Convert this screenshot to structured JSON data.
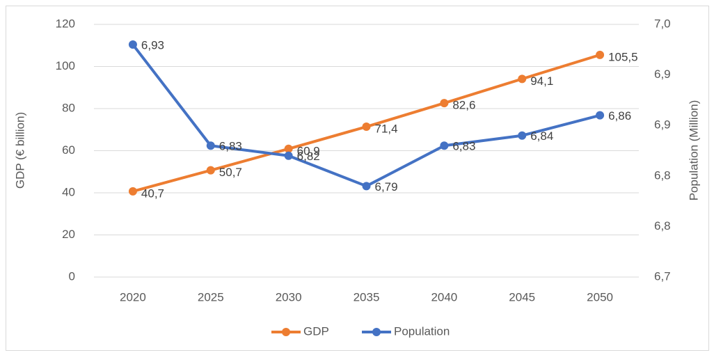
{
  "chart_data": {
    "type": "line",
    "categories": [
      "2020",
      "2025",
      "2030",
      "2035",
      "2040",
      "2045",
      "2050"
    ],
    "y_label": "GDP (€ billion)",
    "y2_label": "Population (Million)",
    "series": [
      {
        "name": "GDP",
        "color": "#ed7d31",
        "values": [
          40.7,
          50.7,
          60.9,
          71.4,
          82.6,
          94.1,
          105.5
        ],
        "value_labels": [
          "40,7",
          "50,7",
          "60,9",
          "71,4",
          "82,6",
          "94,1",
          "105,5"
        ]
      },
      {
        "name": "Population",
        "color": "#4472c4",
        "axis": "y2",
        "values": [
          6.93,
          6.83,
          6.82,
          6.79,
          6.83,
          6.84,
          6.86
        ],
        "value_labels": [
          "6,93",
          "6,83",
          "6,82",
          "6,79",
          "6,83",
          "6,84",
          "6,86"
        ]
      }
    ],
    "ylim": [
      0,
      120
    ],
    "yticks": [
      0,
      20,
      40,
      60,
      80,
      100,
      120
    ],
    "y2lim": [
      6.7,
      6.95
    ],
    "y2ticks": [
      {
        "value": 6.7,
        "label": "6,7"
      },
      {
        "value": 6.75,
        "label": "6,8"
      },
      {
        "value": 6.8,
        "label": "6,8"
      },
      {
        "value": 6.85,
        "label": "6,9"
      },
      {
        "value": 6.9,
        "label": "6,9"
      },
      {
        "value": 6.95,
        "label": "7,0"
      }
    ],
    "grid": true,
    "legend": "bottom"
  }
}
